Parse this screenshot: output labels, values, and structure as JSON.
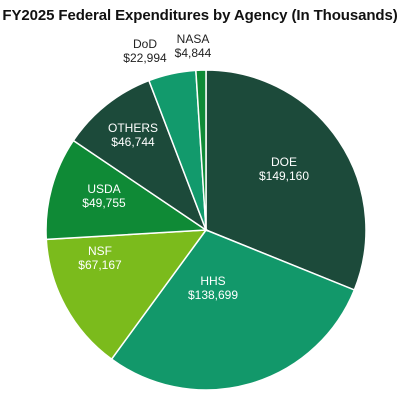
{
  "chart_data": {
    "type": "pie",
    "title": "FY2025 Federal Expenditures by Agency (In Thousands)",
    "slices": [
      {
        "label": "DOE",
        "value_text": "$149,160",
        "value": 149160,
        "color": "#1c4a3a",
        "label_color": "#ffffff"
      },
      {
        "label": "HHS",
        "value_text": "$138,699",
        "value": 138699,
        "color": "#12986a",
        "label_color": "#ffffff"
      },
      {
        "label": "NSF",
        "value_text": "$67,167",
        "value": 67167,
        "color": "#7bbb1c",
        "label_color": "#ffffff"
      },
      {
        "label": "USDA",
        "value_text": "$49,755",
        "value": 49755,
        "color": "#0f8a36",
        "label_color": "#ffffff"
      },
      {
        "label": "OTHERS",
        "value_text": "$46,744",
        "value": 46744,
        "color": "#1c4a3a",
        "label_color": "#ffffff"
      },
      {
        "label": "DoD",
        "value_text": "$22,994",
        "value": 22994,
        "color": "#129a6c",
        "label_color": "#222222"
      },
      {
        "label": "NASA",
        "value_text": "$4,844",
        "value": 4844,
        "color": "#0f8a36",
        "label_color": "#222222"
      }
    ]
  }
}
